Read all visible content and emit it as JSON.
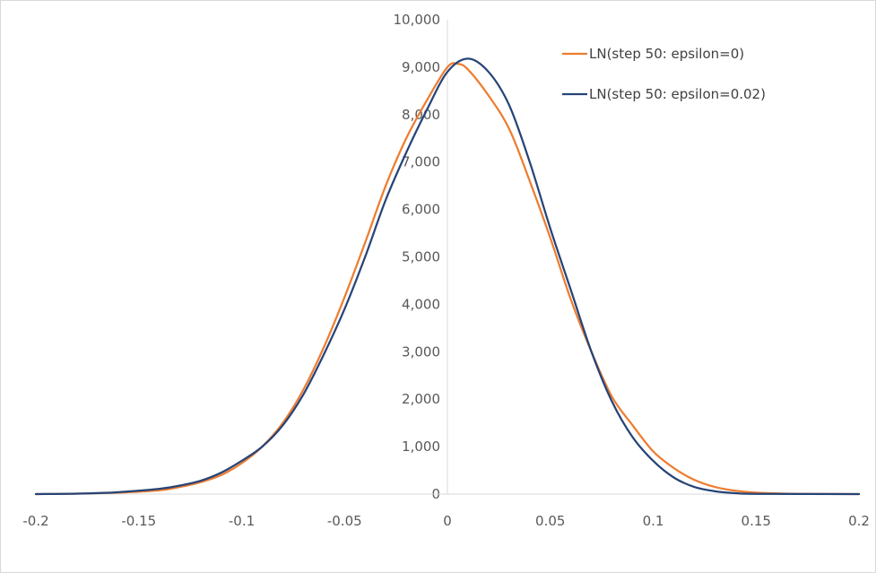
{
  "chart_data": {
    "type": "line",
    "title": "",
    "xlabel": "",
    "ylabel": "",
    "xlim": [
      -0.2,
      0.2
    ],
    "ylim": [
      0,
      10000
    ],
    "x_ticks": [
      "-0.2",
      "-0.15",
      "-0.1",
      "-0.05",
      "0",
      "0.05",
      "0.1",
      "0.15",
      "0.2"
    ],
    "y_ticks": [
      "0",
      "1,000",
      "2,000",
      "3,000",
      "4,000",
      "5,000",
      "6,000",
      "7,000",
      "8,000",
      "9,000",
      "10,000"
    ],
    "grid": false,
    "legend_position": "top-right",
    "series": [
      {
        "name": "LN(step 50: epsilon=0)",
        "color": "#ED7D31",
        "points": [
          [
            -0.2,
            0
          ],
          [
            -0.18,
            10
          ],
          [
            -0.16,
            30
          ],
          [
            -0.14,
            80
          ],
          [
            -0.13,
            150
          ],
          [
            -0.12,
            250
          ],
          [
            -0.11,
            400
          ],
          [
            -0.1,
            650
          ],
          [
            -0.09,
            1000
          ],
          [
            -0.08,
            1500
          ],
          [
            -0.07,
            2200
          ],
          [
            -0.06,
            3100
          ],
          [
            -0.05,
            4150
          ],
          [
            -0.04,
            5300
          ],
          [
            -0.03,
            6500
          ],
          [
            -0.02,
            7500
          ],
          [
            -0.01,
            8300
          ],
          [
            0,
            9000
          ],
          [
            0.005,
            9070
          ],
          [
            0.01,
            8950
          ],
          [
            0.02,
            8400
          ],
          [
            0.03,
            7700
          ],
          [
            0.04,
            6600
          ],
          [
            0.05,
            5400
          ],
          [
            0.06,
            4100
          ],
          [
            0.07,
            3000
          ],
          [
            0.08,
            2050
          ],
          [
            0.09,
            1450
          ],
          [
            0.1,
            900
          ],
          [
            0.11,
            550
          ],
          [
            0.12,
            300
          ],
          [
            0.13,
            150
          ],
          [
            0.14,
            70
          ],
          [
            0.15,
            30
          ],
          [
            0.17,
            5
          ],
          [
            0.2,
            0
          ]
        ]
      },
      {
        "name": "LN(step 50: epsilon=0.02)",
        "color": "#264478",
        "points": [
          [
            -0.2,
            0
          ],
          [
            -0.18,
            10
          ],
          [
            -0.16,
            40
          ],
          [
            -0.14,
            110
          ],
          [
            -0.13,
            180
          ],
          [
            -0.12,
            280
          ],
          [
            -0.11,
            450
          ],
          [
            -0.1,
            700
          ],
          [
            -0.09,
            1000
          ],
          [
            -0.08,
            1450
          ],
          [
            -0.07,
            2100
          ],
          [
            -0.06,
            2950
          ],
          [
            -0.05,
            3900
          ],
          [
            -0.04,
            5000
          ],
          [
            -0.03,
            6200
          ],
          [
            -0.02,
            7200
          ],
          [
            -0.01,
            8100
          ],
          [
            0,
            8900
          ],
          [
            0.01,
            9180
          ],
          [
            0.02,
            8900
          ],
          [
            0.03,
            8200
          ],
          [
            0.04,
            7000
          ],
          [
            0.05,
            5600
          ],
          [
            0.06,
            4300
          ],
          [
            0.07,
            3000
          ],
          [
            0.08,
            1950
          ],
          [
            0.09,
            1200
          ],
          [
            0.1,
            700
          ],
          [
            0.11,
            350
          ],
          [
            0.12,
            150
          ],
          [
            0.13,
            60
          ],
          [
            0.14,
            20
          ],
          [
            0.15,
            5
          ],
          [
            0.2,
            0
          ]
        ]
      }
    ]
  }
}
